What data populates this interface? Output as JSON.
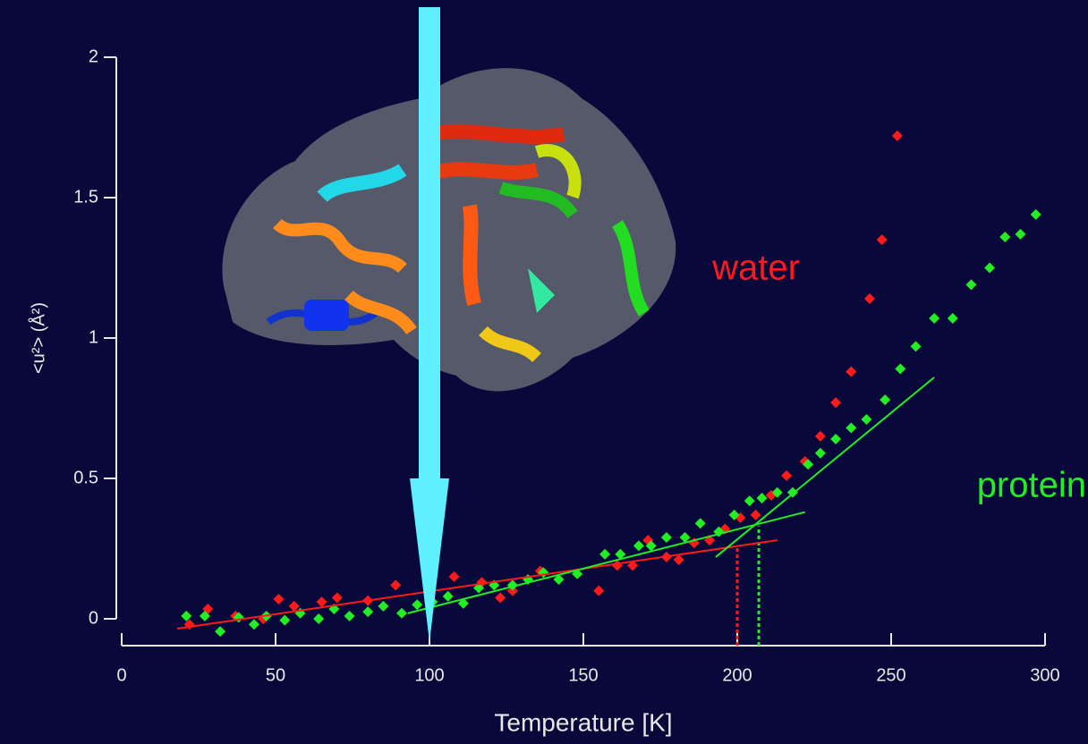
{
  "chart_data": {
    "type": "scatter",
    "xlabel": "Temperature [K]",
    "ylabel": "<u²> (Å²)",
    "xlim": [
      0,
      300
    ],
    "ylim": [
      0,
      2
    ],
    "xticks": [
      0,
      50,
      100,
      150,
      200,
      250,
      300
    ],
    "yticks": [
      0,
      0.5,
      1,
      1.5,
      2
    ],
    "series": [
      {
        "name": "water",
        "color": "#ff1a1a",
        "x": [
          22,
          28,
          37,
          46,
          51,
          56,
          65,
          70,
          80,
          89,
          100,
          108,
          117,
          123,
          127,
          136,
          155,
          161,
          166,
          171,
          177,
          181,
          186,
          191,
          196,
          201,
          206,
          211,
          216,
          222,
          227,
          232,
          237,
          243,
          247,
          252
        ],
        "values": [
          -0.02,
          0.035,
          0.01,
          0.0,
          0.07,
          0.045,
          0.06,
          0.075,
          0.065,
          0.12,
          0.065,
          0.15,
          0.13,
          0.075,
          0.1,
          0.17,
          0.1,
          0.19,
          0.19,
          0.28,
          0.22,
          0.21,
          0.27,
          0.28,
          0.32,
          0.36,
          0.37,
          0.44,
          0.51,
          0.56,
          0.65,
          0.77,
          0.88,
          1.14,
          1.35,
          1.72
        ]
      },
      {
        "name": "protein",
        "color": "#22ee22",
        "x": [
          21,
          27,
          32,
          38,
          43,
          47,
          53,
          58,
          64,
          69,
          74,
          80,
          85,
          91,
          96,
          101,
          106,
          111,
          116,
          121,
          127,
          132,
          137,
          142,
          148,
          157,
          162,
          168,
          172,
          177,
          183,
          188,
          194,
          199,
          204,
          208,
          213,
          218,
          223,
          227,
          232,
          237,
          242,
          248,
          253,
          258,
          264,
          270,
          276,
          282,
          287,
          292,
          297
        ],
        "values": [
          0.01,
          0.01,
          -0.045,
          0.005,
          -0.02,
          0.01,
          -0.005,
          0.02,
          0.0,
          0.035,
          0.01,
          0.025,
          0.045,
          0.02,
          0.05,
          0.06,
          0.08,
          0.055,
          0.11,
          0.12,
          0.12,
          0.14,
          0.165,
          0.14,
          0.16,
          0.23,
          0.23,
          0.26,
          0.26,
          0.29,
          0.29,
          0.34,
          0.31,
          0.37,
          0.42,
          0.43,
          0.45,
          0.45,
          0.55,
          0.59,
          0.64,
          0.68,
          0.71,
          0.78,
          0.89,
          0.97,
          1.07,
          1.07,
          1.19,
          1.25,
          1.36,
          1.37,
          1.44
        ]
      }
    ],
    "fit_lines": [
      {
        "color": "#ff1a1a",
        "x": [
          18,
          213
        ],
        "values": [
          -0.035,
          0.28
        ]
      },
      {
        "color": "#22ee22",
        "x": [
          93,
          222
        ],
        "values": [
          0.02,
          0.38
        ]
      },
      {
        "color": "#22ee22",
        "x": [
          193,
          264
        ],
        "values": [
          0.22,
          0.86
        ]
      }
    ],
    "vlines": [
      {
        "color": "#ff1a1a",
        "x": 200,
        "values": [
          0,
          0.26
        ]
      },
      {
        "color": "#22ee22",
        "x": 207,
        "values": [
          0,
          0.33
        ]
      }
    ],
    "arrow_x": 100
  }
}
